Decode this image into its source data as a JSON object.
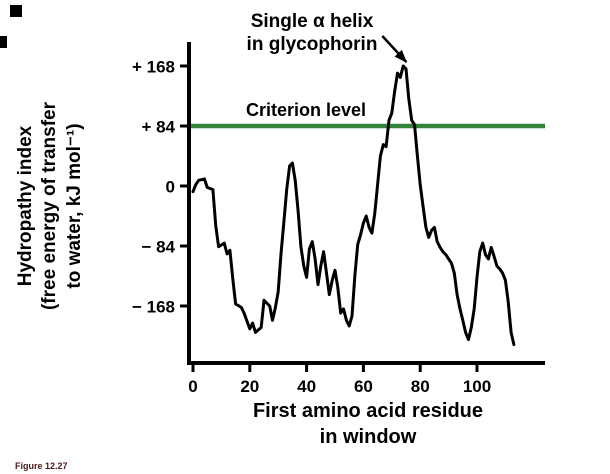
{
  "figure": {
    "caption": "Figure 12.27",
    "annotation": {
      "line1": "Single α helix",
      "line2": "in glycophorin"
    },
    "criterion_label": "Criterion level",
    "colors": {
      "criterion_green": "#35823a",
      "curve": "#000000",
      "axis": "#000000",
      "caption": "#4a1a1a"
    }
  },
  "chart_data": {
    "type": "line",
    "title": "",
    "xlabel": "First amino acid residue in window",
    "xlabel_lines": [
      "First amino acid residue",
      "in window"
    ],
    "ylabel": "Hydropathy index (free energy of transfer to water, kJ mol⁻¹)",
    "ylabel_lines": [
      "Hydropathy index",
      "(free energy of transfer",
      "to water, kJ mol⁻¹)"
    ],
    "xticks": [
      0,
      20,
      40,
      60,
      80,
      100
    ],
    "xtick_labels": [
      "0",
      "20",
      "40",
      "60",
      "80",
      "100"
    ],
    "yticks": [
      168,
      84,
      0,
      -84,
      -168
    ],
    "ytick_labels": [
      "+ 168",
      "+ 84",
      "0",
      "− 84",
      "− 168"
    ],
    "xlim": [
      0,
      115
    ],
    "ylim": [
      -250,
      205
    ],
    "grid": false,
    "legend": "none",
    "criterion_level": 84,
    "annotation_target": {
      "x": 73,
      "y": 168
    },
    "series": [
      {
        "name": "hydropathy",
        "points": [
          [
            0,
            -8
          ],
          [
            1,
            2
          ],
          [
            2,
            8
          ],
          [
            4,
            10
          ],
          [
            5,
            -2
          ],
          [
            7,
            -5
          ],
          [
            8,
            -55
          ],
          [
            9,
            -85
          ],
          [
            11,
            -80
          ],
          [
            12,
            -95
          ],
          [
            13,
            -90
          ],
          [
            14,
            -130
          ],
          [
            15,
            -165
          ],
          [
            17,
            -170
          ],
          [
            18,
            -178
          ],
          [
            20,
            -200
          ],
          [
            21,
            -192
          ],
          [
            22,
            -205
          ],
          [
            24,
            -198
          ],
          [
            25,
            -160
          ],
          [
            27,
            -168
          ],
          [
            28,
            -188
          ],
          [
            29,
            -170
          ],
          [
            30,
            -148
          ],
          [
            31,
            -95
          ],
          [
            32,
            -50
          ],
          [
            33,
            -5
          ],
          [
            34,
            28
          ],
          [
            35,
            32
          ],
          [
            36,
            8
          ],
          [
            37,
            -35
          ],
          [
            38,
            -85
          ],
          [
            39,
            -112
          ],
          [
            40,
            -128
          ],
          [
            41,
            -88
          ],
          [
            42,
            -78
          ],
          [
            43,
            -102
          ],
          [
            44,
            -138
          ],
          [
            45,
            -112
          ],
          [
            46,
            -92
          ],
          [
            47,
            -122
          ],
          [
            48,
            -152
          ],
          [
            49,
            -132
          ],
          [
            50,
            -118
          ],
          [
            51,
            -142
          ],
          [
            52,
            -178
          ],
          [
            53,
            -172
          ],
          [
            54,
            -188
          ],
          [
            55,
            -196
          ],
          [
            56,
            -182
          ],
          [
            57,
            -125
          ],
          [
            58,
            -82
          ],
          [
            59,
            -68
          ],
          [
            60,
            -52
          ],
          [
            61,
            -42
          ],
          [
            62,
            -58
          ],
          [
            63,
            -66
          ],
          [
            64,
            -38
          ],
          [
            65,
            2
          ],
          [
            66,
            42
          ],
          [
            67,
            58
          ],
          [
            68,
            55
          ],
          [
            69,
            92
          ],
          [
            70,
            102
          ],
          [
            71,
            132
          ],
          [
            72,
            158
          ],
          [
            73,
            152
          ],
          [
            74,
            168
          ],
          [
            75,
            164
          ],
          [
            76,
            122
          ],
          [
            77,
            92
          ],
          [
            78,
            86
          ],
          [
            79,
            42
          ],
          [
            80,
            2
          ],
          [
            81,
            -28
          ],
          [
            82,
            -58
          ],
          [
            83,
            -72
          ],
          [
            84,
            -62
          ],
          [
            85,
            -58
          ],
          [
            86,
            -78
          ],
          [
            87,
            -86
          ],
          [
            88,
            -92
          ],
          [
            89,
            -96
          ],
          [
            90,
            -102
          ],
          [
            91,
            -108
          ],
          [
            92,
            -122
          ],
          [
            93,
            -152
          ],
          [
            94,
            -172
          ],
          [
            95,
            -188
          ],
          [
            96,
            -205
          ],
          [
            97,
            -215
          ],
          [
            98,
            -198
          ],
          [
            99,
            -172
          ],
          [
            100,
            -128
          ],
          [
            101,
            -92
          ],
          [
            102,
            -80
          ],
          [
            103,
            -96
          ],
          [
            104,
            -102
          ],
          [
            105,
            -86
          ],
          [
            106,
            -98
          ],
          [
            107,
            -112
          ],
          [
            108,
            -116
          ],
          [
            109,
            -122
          ],
          [
            110,
            -132
          ],
          [
            111,
            -162
          ],
          [
            112,
            -205
          ],
          [
            113,
            -222
          ]
        ]
      }
    ]
  }
}
